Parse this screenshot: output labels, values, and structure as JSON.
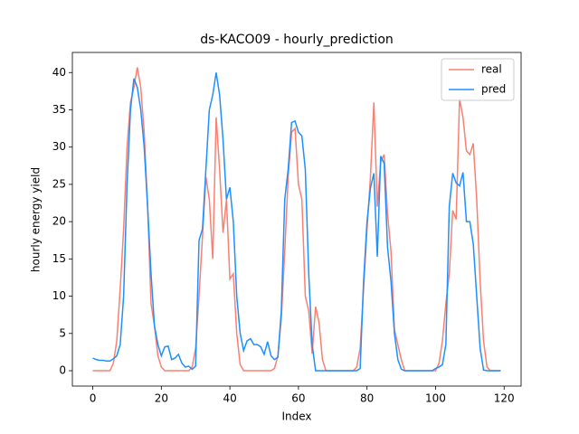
{
  "chart_data": {
    "type": "line",
    "title": "ds-KACO09 - hourly_prediction",
    "x_label": "Index",
    "y_label": "hourly energy yield",
    "x": [
      0,
      1,
      2,
      3,
      4,
      5,
      6,
      7,
      8,
      9,
      10,
      11,
      12,
      13,
      14,
      15,
      16,
      17,
      18,
      19,
      20,
      21,
      22,
      23,
      24,
      25,
      26,
      27,
      28,
      29,
      30,
      31,
      32,
      33,
      34,
      35,
      36,
      37,
      38,
      39,
      40,
      41,
      42,
      43,
      44,
      45,
      46,
      47,
      48,
      49,
      50,
      51,
      52,
      53,
      54,
      55,
      56,
      57,
      58,
      59,
      60,
      61,
      62,
      63,
      64,
      65,
      66,
      67,
      68,
      69,
      70,
      71,
      72,
      73,
      74,
      75,
      76,
      77,
      78,
      79,
      80,
      81,
      82,
      83,
      84,
      85,
      86,
      87,
      88,
      89,
      90,
      91,
      92,
      93,
      94,
      95,
      96,
      97,
      98,
      99,
      100,
      101,
      102,
      103,
      104,
      105,
      106,
      107,
      108,
      109,
      110,
      111,
      112,
      113,
      114,
      115,
      116,
      117,
      118,
      119
    ],
    "series": [
      {
        "name": "real",
        "color": "#fa8072",
        "values": [
          0,
          0,
          0,
          0,
          0,
          0,
          1,
          4,
          11,
          19,
          30,
          36,
          38,
          40.7,
          38,
          32,
          22,
          9,
          6,
          2,
          0.5,
          0,
          0,
          0,
          0,
          0,
          0,
          0,
          0,
          0.5,
          3,
          10,
          18,
          26,
          23,
          15,
          34,
          27,
          18.5,
          23,
          12.3,
          13,
          5,
          0.8,
          0,
          0,
          0,
          0,
          0,
          0,
          0,
          0,
          0,
          0.3,
          2,
          7,
          16,
          26,
          32,
          32.5,
          25,
          23,
          10,
          8,
          2.3,
          8.6,
          6.5,
          1.5,
          0,
          0,
          0,
          0,
          0,
          0,
          0,
          0,
          0,
          0.5,
          3,
          11,
          19,
          26,
          36,
          22,
          28,
          29,
          21,
          16,
          5.5,
          3.5,
          1.5,
          0,
          0,
          0,
          0,
          0,
          0,
          0,
          0,
          0,
          0,
          1,
          4,
          9,
          13,
          21.5,
          20.3,
          36.5,
          34,
          29.5,
          29,
          30.5,
          23,
          12,
          4,
          0.5,
          0,
          0,
          0,
          0
        ]
      },
      {
        "name": "pred",
        "color": "#1e90ff",
        "values": [
          1.7,
          1.5,
          1.4,
          1.4,
          1.3,
          1.3,
          1.6,
          2,
          3.5,
          10,
          25,
          35,
          39.2,
          38,
          35,
          30,
          22,
          13,
          6,
          3.5,
          2,
          3.2,
          3.3,
          1.5,
          1.7,
          2.2,
          1,
          0.5,
          0.6,
          0.2,
          0.6,
          17.5,
          19,
          27,
          35,
          37,
          40,
          37,
          31,
          23,
          24.6,
          20,
          10,
          5,
          2.7,
          4,
          4.3,
          3.5,
          3.5,
          3.2,
          2.2,
          3.9,
          2,
          1.5,
          1.8,
          8,
          23,
          27,
          33.3,
          33.5,
          32,
          31.5,
          27,
          13,
          3.5,
          0,
          0,
          0,
          0,
          0,
          0,
          0,
          0,
          0,
          0,
          0,
          0,
          0,
          0.3,
          12,
          20,
          24.5,
          26.5,
          15.3,
          28.8,
          27.8,
          16.5,
          12,
          5,
          1.5,
          0.2,
          0,
          0,
          0,
          0,
          0,
          0,
          0,
          0,
          0,
          0.3,
          0.5,
          0.8,
          3.5,
          22,
          26.5,
          25.2,
          24.8,
          26.6,
          20,
          20,
          17,
          10,
          3,
          0.1,
          0,
          0,
          0,
          0,
          0
        ]
      }
    ],
    "xlim": [
      -5.95,
      124.95
    ],
    "ylim": [
      -2.06,
      42.7
    ],
    "xticks": [
      0,
      20,
      40,
      60,
      80,
      100,
      120
    ],
    "yticks": [
      0,
      5,
      10,
      15,
      20,
      25,
      30,
      35,
      40
    ],
    "legend": "upper right"
  }
}
